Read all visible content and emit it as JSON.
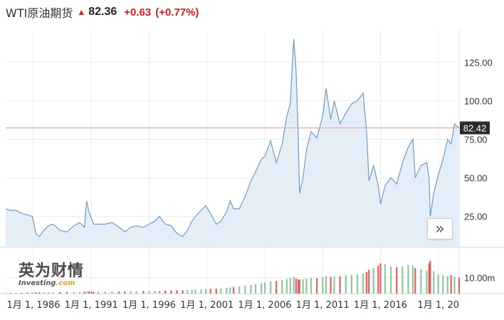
{
  "header": {
    "title": "WTI原油期货",
    "price": "82.36",
    "change": "+0.63",
    "change_pct": "(+0.77%)",
    "up_color": "#e0181b",
    "direction_icon": "up-arrow-icon"
  },
  "current_label": "82.42",
  "nav_icon": "double-chevron-right-icon",
  "logo": {
    "main": "英为财情",
    "sub": "Investing",
    "sub_suffix": ".com"
  },
  "colors": {
    "line": "#6a9dc9",
    "fill": "#e4eef7",
    "ref_line": "#f29a9a",
    "vol_up": "#8cc8a0",
    "vol_down": "#e06060",
    "grid": "#ebebeb",
    "label_bg": "#2b2b2b"
  },
  "chart_data": {
    "type": "area",
    "title": "WTI原油期货",
    "y_ticks": [
      25,
      50,
      75,
      100,
      125
    ],
    "y_tick_labels": [
      "25.00",
      "50.00",
      "75.00",
      "100.00",
      "125.00"
    ],
    "ylim": [
      5,
      145
    ],
    "reference_value": 82.42,
    "x_ticks": [
      1986,
      1991,
      1996,
      2001,
      2006,
      2011,
      2016,
      2021
    ],
    "x_tick_labels": [
      "1月 1, 1986",
      "1月 1, 1991",
      "1月 1, 1996",
      "1月 1, 2001",
      "1月 1, 2006",
      "1月 1, 2011",
      "1月 1, 2016",
      "1月 1, 20"
    ],
    "xlim": [
      1983.6,
      2022.8
    ],
    "volume_label": "10.00m",
    "volume_ylim": [
      0,
      25
    ],
    "volume_label_value": 10,
    "x": [
      1983.6,
      1984.0,
      1984.5,
      1985.0,
      1985.5,
      1985.9,
      1986.2,
      1986.5,
      1986.9,
      1987.3,
      1987.7,
      1988.3,
      1988.9,
      1989.5,
      1990.0,
      1990.4,
      1990.6,
      1990.8,
      1991.0,
      1991.2,
      1991.6,
      1992.2,
      1992.8,
      1993.4,
      1993.9,
      1994.4,
      1994.9,
      1995.5,
      1996.0,
      1996.5,
      1996.9,
      1997.4,
      1997.9,
      1998.4,
      1998.9,
      1999.3,
      1999.7,
      2000.0,
      2000.5,
      2000.9,
      2001.3,
      2001.8,
      2002.2,
      2002.7,
      2003.0,
      2003.3,
      2003.8,
      2004.3,
      2004.8,
      2005.2,
      2005.7,
      2006.0,
      2006.5,
      2007.0,
      2007.5,
      2007.9,
      2008.2,
      2008.5,
      2008.7,
      2008.9,
      2009.0,
      2009.3,
      2009.6,
      2010.0,
      2010.5,
      2011.0,
      2011.3,
      2011.7,
      2012.0,
      2012.5,
      2013.0,
      2013.5,
      2014.0,
      2014.5,
      2014.8,
      2015.0,
      2015.4,
      2015.8,
      2016.0,
      2016.4,
      2016.9,
      2017.4,
      2017.9,
      2018.4,
      2018.8,
      2019.0,
      2019.5,
      2020.0,
      2020.2,
      2020.3,
      2020.6,
      2021.0,
      2021.4,
      2021.8,
      2022.1,
      2022.4,
      2022.8
    ],
    "values": [
      30,
      29,
      29,
      27,
      26,
      25,
      14,
      12,
      16,
      19,
      20,
      16,
      15,
      19,
      21,
      18,
      35,
      28,
      24,
      20,
      20,
      20,
      21,
      18,
      15,
      18,
      19,
      18,
      20,
      22,
      25,
      20,
      19,
      14,
      12,
      16,
      22,
      25,
      29,
      32,
      27,
      20,
      22,
      28,
      35,
      30,
      30,
      38,
      48,
      54,
      62,
      64,
      74,
      60,
      72,
      90,
      98,
      140,
      120,
      75,
      40,
      50,
      68,
      80,
      76,
      90,
      108,
      88,
      100,
      85,
      92,
      98,
      100,
      105,
      80,
      48,
      58,
      45,
      33,
      45,
      50,
      46,
      60,
      70,
      75,
      50,
      58,
      60,
      50,
      25,
      40,
      52,
      62,
      75,
      72,
      85,
      82.36
    ],
    "volume": [
      0.4,
      0.4,
      0.5,
      0.5,
      0.6,
      0.6,
      0.8,
      0.8,
      0.9,
      0.9,
      1.0,
      1.0,
      1.1,
      1.1,
      1.2,
      1.2,
      1.5,
      1.4,
      1.3,
      1.2,
      1.2,
      1.3,
      1.3,
      1.4,
      1.4,
      1.5,
      1.5,
      1.6,
      1.6,
      1.7,
      1.8,
      1.9,
      2.0,
      2.1,
      2.2,
      2.3,
      2.4,
      2.5,
      2.7,
      2.9,
      3.0,
      3.2,
      3.4,
      3.6,
      3.9,
      4.2,
      4.6,
      5.0,
      5.5,
      6.0,
      6.5,
      7.0,
      7.5,
      8.0,
      8.6,
      9.2,
      9.8,
      10.5,
      9.5,
      9.0,
      8.8,
      9.0,
      9.5,
      10.0,
      9.8,
      10.5,
      11.0,
      10.5,
      11.0,
      10.8,
      11.5,
      11.8,
      12.0,
      12.5,
      13.5,
      15.0,
      16.0,
      17.5,
      19.0,
      18.5,
      17.0,
      16.5,
      17.0,
      18.0,
      17.5,
      16.0,
      15.5,
      14.5,
      19.0,
      20.5,
      14.0,
      12.0,
      11.5,
      11.0,
      11.5,
      10.5,
      10.0
    ]
  }
}
